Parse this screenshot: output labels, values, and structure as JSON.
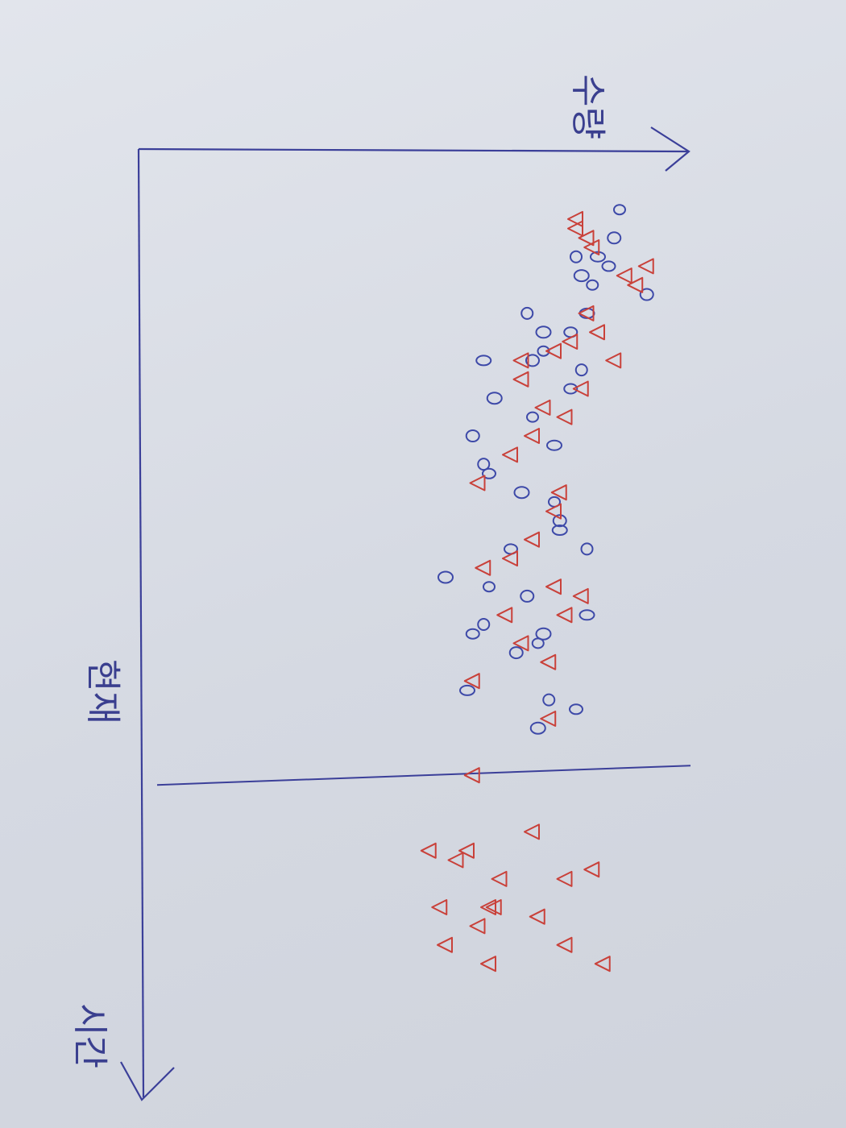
{
  "chart_data": {
    "type": "scatter",
    "title": "",
    "xlabel": "시간",
    "ylabel": "수량",
    "annotation": "현재",
    "xlim": [
      0,
      100
    ],
    "ylim": [
      0,
      100
    ],
    "divider_x": 66,
    "colors": {
      "axis": "#3b3f99",
      "circle": "#3d49a8",
      "triangle": "#c9413a"
    },
    "series": [
      {
        "name": "circle",
        "marker": "circle",
        "points": [
          [
            6,
            88
          ],
          [
            9,
            87
          ],
          [
            11,
            84
          ],
          [
            11,
            80
          ],
          [
            12,
            86
          ],
          [
            13,
            81
          ],
          [
            14,
            83
          ],
          [
            15,
            93
          ],
          [
            17,
            82
          ],
          [
            17,
            71
          ],
          [
            19,
            79
          ],
          [
            19,
            74
          ],
          [
            21,
            74
          ],
          [
            22,
            72
          ],
          [
            22,
            63
          ],
          [
            23,
            81
          ],
          [
            25,
            79
          ],
          [
            26,
            65
          ],
          [
            28,
            72
          ],
          [
            30,
            61
          ],
          [
            31,
            76
          ],
          [
            33,
            63
          ],
          [
            34,
            64
          ],
          [
            36,
            70
          ],
          [
            37,
            76
          ],
          [
            39,
            77
          ],
          [
            40,
            77
          ],
          [
            42,
            82
          ],
          [
            42,
            68
          ],
          [
            45,
            56
          ],
          [
            46,
            64
          ],
          [
            47,
            71
          ],
          [
            49,
            82
          ],
          [
            50,
            63
          ],
          [
            51,
            61
          ],
          [
            51,
            74
          ],
          [
            52,
            73
          ],
          [
            53,
            69
          ],
          [
            57,
            60
          ],
          [
            58,
            75
          ],
          [
            59,
            80
          ],
          [
            61,
            73
          ]
        ]
      },
      {
        "name": "triangle",
        "marker": "triangle",
        "points": [
          [
            7,
            80
          ],
          [
            8,
            80
          ],
          [
            9,
            82
          ],
          [
            10,
            83
          ],
          [
            12,
            93
          ],
          [
            13,
            89
          ],
          [
            14,
            91
          ],
          [
            17,
            82
          ],
          [
            19,
            84
          ],
          [
            20,
            79
          ],
          [
            21,
            76
          ],
          [
            22,
            70
          ],
          [
            22,
            87
          ],
          [
            24,
            70
          ],
          [
            25,
            81
          ],
          [
            27,
            74
          ],
          [
            28,
            78
          ],
          [
            30,
            72
          ],
          [
            32,
            68
          ],
          [
            35,
            62
          ],
          [
            36,
            77
          ],
          [
            38,
            76
          ],
          [
            41,
            72
          ],
          [
            43,
            68
          ],
          [
            44,
            63
          ],
          [
            46,
            76
          ],
          [
            47,
            81
          ],
          [
            49,
            78
          ],
          [
            49,
            67
          ],
          [
            52,
            70
          ],
          [
            54,
            75
          ],
          [
            56,
            61
          ],
          [
            60,
            75
          ],
          [
            66,
            61
          ],
          [
            72,
            72
          ],
          [
            74,
            53
          ],
          [
            74,
            60
          ],
          [
            75,
            58
          ],
          [
            76,
            83
          ],
          [
            77,
            66
          ],
          [
            77,
            78
          ],
          [
            80,
            55
          ],
          [
            80,
            65
          ],
          [
            80,
            64
          ],
          [
            81,
            73
          ],
          [
            82,
            62
          ],
          [
            84,
            56
          ],
          [
            84,
            78
          ],
          [
            86,
            64
          ],
          [
            86,
            85
          ]
        ]
      }
    ]
  }
}
